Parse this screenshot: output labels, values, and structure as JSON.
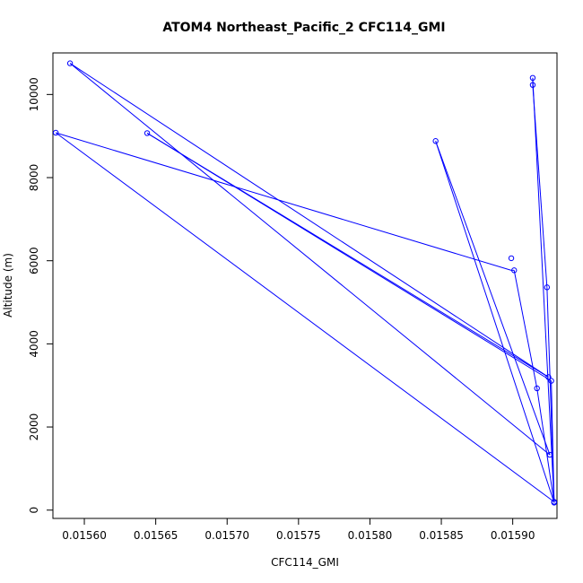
{
  "chart_data": {
    "type": "line",
    "title": "ATOM4 Northeast_Pacific_2 CFC114_GMI",
    "xlabel": "CFC114_GMI",
    "ylabel": "Altitude (m)",
    "xlim": [
      0.015578,
      0.015931
    ],
    "ylim": [
      -200,
      11000
    ],
    "x_ticks": [
      0.0156,
      0.01565,
      0.0157,
      0.01575,
      0.0158,
      0.01585,
      0.0159
    ],
    "x_tick_labels": [
      "0.01560",
      "0.01565",
      "0.01570",
      "0.01575",
      "0.01580",
      "0.01585",
      "0.01590"
    ],
    "y_ticks": [
      0,
      2000,
      4000,
      6000,
      8000,
      10000
    ],
    "y_tick_labels": [
      "0",
      "2000",
      "4000",
      "6000",
      "8000",
      "10000"
    ],
    "grid": false,
    "legend": "none",
    "series": [
      {
        "color": "#0000ff",
        "marker": "open-circle",
        "points": [
          {
            "x": 0.015929,
            "y": 180
          },
          {
            "x": 0.015929,
            "y": 200
          },
          {
            "x": 0.015926,
            "y": 1330
          },
          {
            "x": 0.015917,
            "y": 2930
          },
          {
            "x": 0.015927,
            "y": 3110
          },
          {
            "x": 0.015925,
            "y": 3200
          },
          {
            "x": 0.015924,
            "y": 5360
          },
          {
            "x": 0.015901,
            "y": 5770
          },
          {
            "x": 0.015899,
            "y": 6060
          },
          {
            "x": 0.015846,
            "y": 8880
          },
          {
            "x": 0.015644,
            "y": 9070
          },
          {
            "x": 0.01558,
            "y": 9080
          },
          {
            "x": 0.015914,
            "y": 10230
          },
          {
            "x": 0.015914,
            "y": 10400
          },
          {
            "x": 0.01559,
            "y": 10750
          }
        ],
        "line_path": [
          {
            "x": 0.015929,
            "y": 180
          },
          {
            "x": 0.015924,
            "y": 5360
          },
          {
            "x": 0.015914,
            "y": 10230
          },
          {
            "x": 0.015914,
            "y": 10400
          },
          {
            "x": 0.015929,
            "y": 200
          },
          {
            "x": 0.01558,
            "y": 9080
          },
          {
            "x": 0.015899,
            "y": 5770
          },
          {
            "x": 0.015901,
            "y": 5770
          },
          {
            "x": 0.015917,
            "y": 2930
          },
          {
            "x": 0.015929,
            "y": 180
          },
          {
            "x": 0.015846,
            "y": 8880
          },
          {
            "x": 0.015926,
            "y": 1330
          },
          {
            "x": 0.01559,
            "y": 10750
          },
          {
            "x": 0.015925,
            "y": 3200
          },
          {
            "x": 0.015644,
            "y": 9070
          },
          {
            "x": 0.015927,
            "y": 3110
          },
          {
            "x": 0.015929,
            "y": 180
          }
        ]
      }
    ]
  }
}
